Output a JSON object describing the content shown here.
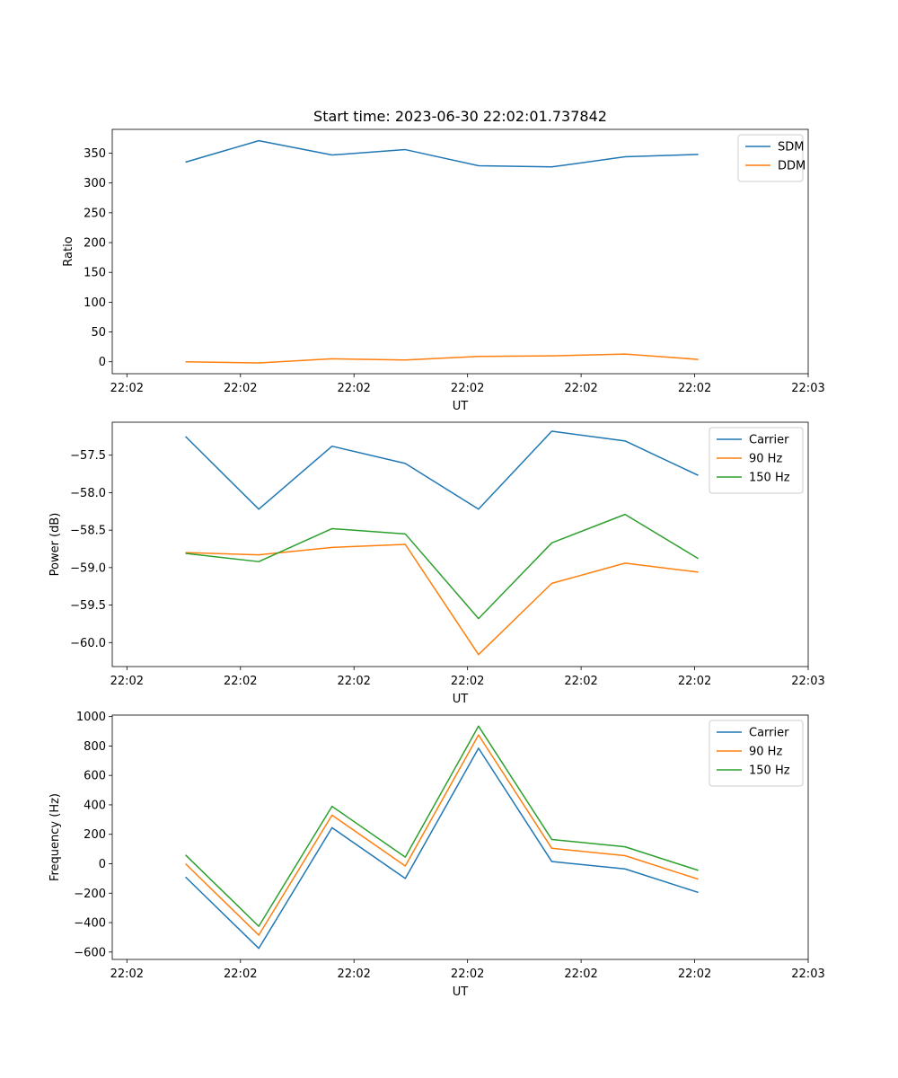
{
  "figure_title": "Start time: 2023-06-30 22:02:01.737842",
  "chart_data": [
    {
      "type": "line",
      "xlabel": "UT",
      "ylabel": "Ratio",
      "x": [
        1,
        2,
        3,
        4,
        5,
        6,
        7,
        8
      ],
      "x_tick_labels": [
        "22:02",
        "22:02",
        "22:02",
        "22:02",
        "22:02",
        "22:02",
        "22:03"
      ],
      "x_tick_positions": [
        0.2,
        1.75,
        3.3,
        4.85,
        6.4,
        7.95,
        9.5
      ],
      "xlim": [
        0,
        9.5
      ],
      "ylim": [
        -20,
        390
      ],
      "yticks": [
        0,
        50,
        100,
        150,
        200,
        250,
        300,
        350
      ],
      "legend_position": "upper-right",
      "series": [
        {
          "name": "SDM",
          "color": "#1f77b4",
          "values": [
            335,
            371,
            347,
            356,
            329,
            327,
            344,
            348
          ]
        },
        {
          "name": "DDM",
          "color": "#ff7f0e",
          "values": [
            0,
            -2,
            5,
            3,
            9,
            10,
            13,
            4
          ]
        }
      ]
    },
    {
      "type": "line",
      "xlabel": "UT",
      "ylabel": "Power (dB)",
      "x": [
        1,
        2,
        3,
        4,
        5,
        6,
        7,
        8
      ],
      "x_tick_labels": [
        "22:02",
        "22:02",
        "22:02",
        "22:02",
        "22:02",
        "22:02",
        "22:03"
      ],
      "x_tick_positions": [
        0.2,
        1.75,
        3.3,
        4.85,
        6.4,
        7.95,
        9.5
      ],
      "xlim": [
        0,
        9.5
      ],
      "ylim": [
        -60.32,
        -57.06
      ],
      "yticks": [
        -60.0,
        -59.5,
        -59.0,
        -58.5,
        -58.0,
        -57.5
      ],
      "ytick_labels": [
        "−60.0",
        "−59.5",
        "−59.0",
        "−58.5",
        "−58.0",
        "−57.5"
      ],
      "legend_position": "upper-right",
      "series": [
        {
          "name": "Carrier",
          "color": "#1f77b4",
          "values": [
            -57.25,
            -58.22,
            -57.38,
            -57.61,
            -58.22,
            -57.18,
            -57.31,
            -57.77
          ]
        },
        {
          "name": "90 Hz",
          "color": "#ff7f0e",
          "values": [
            -58.8,
            -58.83,
            -58.73,
            -58.69,
            -60.16,
            -59.21,
            -58.94,
            -59.06
          ]
        },
        {
          "name": "150 Hz",
          "color": "#2ca02c",
          "values": [
            -58.81,
            -58.92,
            -58.48,
            -58.55,
            -59.68,
            -58.67,
            -58.29,
            -58.88
          ]
        }
      ]
    },
    {
      "type": "line",
      "xlabel": "UT",
      "ylabel": "Frequency (Hz)",
      "x": [
        1,
        2,
        3,
        4,
        5,
        6,
        7,
        8
      ],
      "x_tick_labels": [
        "22:02",
        "22:02",
        "22:02",
        "22:02",
        "22:02",
        "22:02",
        "22:03"
      ],
      "x_tick_positions": [
        0.2,
        1.75,
        3.3,
        4.85,
        6.4,
        7.95,
        9.5
      ],
      "xlim": [
        0,
        9.5
      ],
      "ylim": [
        -650,
        1010
      ],
      "yticks": [
        -600,
        -400,
        -200,
        0,
        200,
        400,
        600,
        800,
        1000
      ],
      "ytick_labels": [
        "−600",
        "−400",
        "−200",
        "0",
        "200",
        "400",
        "600",
        "800",
        "1000"
      ],
      "legend_position": "upper-right",
      "series": [
        {
          "name": "Carrier",
          "color": "#1f77b4",
          "values": [
            -90,
            -575,
            245,
            -100,
            785,
            15,
            -35,
            -195
          ]
        },
        {
          "name": "90 Hz",
          "color": "#ff7f0e",
          "values": [
            0,
            -485,
            330,
            -15,
            875,
            105,
            55,
            -105
          ]
        },
        {
          "name": "150 Hz",
          "color": "#2ca02c",
          "values": [
            60,
            -425,
            390,
            45,
            935,
            165,
            115,
            -45
          ]
        }
      ]
    }
  ]
}
